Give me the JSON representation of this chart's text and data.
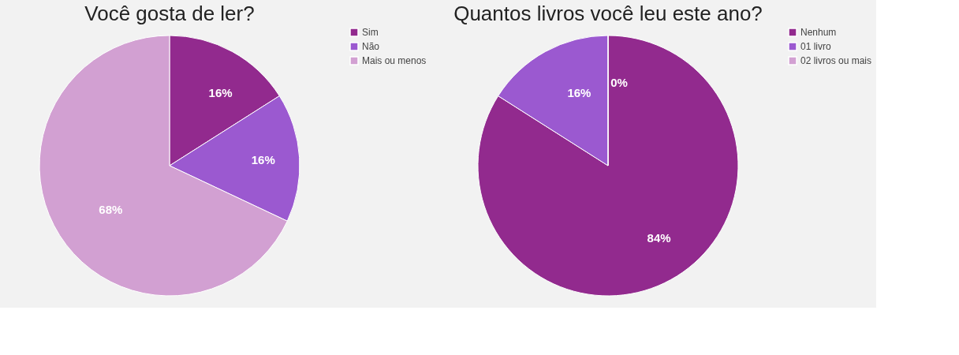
{
  "chart_data": [
    {
      "type": "pie",
      "title": "Você gosta de ler?",
      "categories": [
        "Sim",
        "Não",
        "Mais ou menos"
      ],
      "values": [
        16,
        16,
        68
      ],
      "colors": [
        "#922a8e",
        "#9b59d0",
        "#d2a0d2"
      ],
      "value_labels": [
        "16%",
        "16%",
        "68%"
      ],
      "legend": "right"
    },
    {
      "type": "pie",
      "title": "Quantos livros você leu este ano?",
      "categories": [
        "Nenhum",
        "01 livro",
        "02 livros ou mais"
      ],
      "values": [
        84,
        16,
        0
      ],
      "colors": [
        "#922a8e",
        "#9b59d0",
        "#d2a0d2"
      ],
      "value_labels": [
        "84%",
        "16%",
        "0%"
      ],
      "legend": "right"
    }
  ]
}
